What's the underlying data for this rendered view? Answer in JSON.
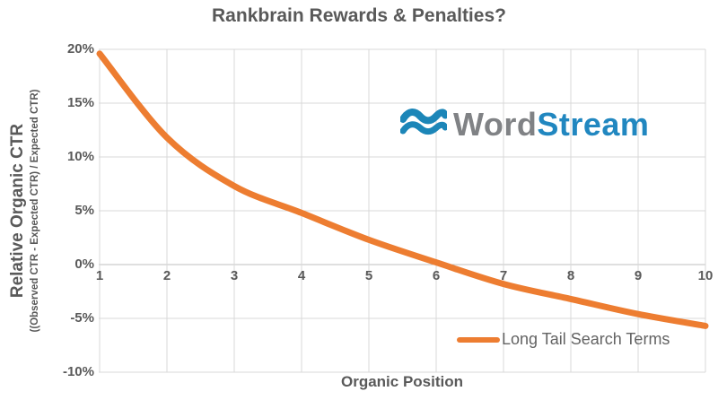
{
  "chart_data": {
    "type": "line",
    "title": "Rankbrain Rewards & Penalties?",
    "xlabel": "Organic Position",
    "ylabel": "Relative Organic CTR",
    "ylabel_sub": "((Observed CTR - Expected CTR) / Expected CTR)",
    "x": [
      1,
      2,
      3,
      4,
      5,
      6,
      7,
      8,
      9,
      10
    ],
    "xtick_labels": [
      "1",
      "2",
      "3",
      "4",
      "5",
      "6",
      "7",
      "8",
      "9",
      "10"
    ],
    "ytick_labels": [
      "20%",
      "15%",
      "10%",
      "5%",
      "0%",
      "-5%",
      "-10%"
    ],
    "ytick_values": [
      20,
      15,
      10,
      5,
      0,
      -5,
      -10
    ],
    "xlim": [
      1,
      10
    ],
    "ylim": [
      -10,
      20
    ],
    "grid": true,
    "legend_position": "inside-bottom-right",
    "series": [
      {
        "name": "Long Tail Search Terms",
        "color": "#ED7D31",
        "values": [
          19.6,
          11.8,
          7.3,
          4.8,
          2.3,
          0.2,
          -1.8,
          -3.2,
          -4.6,
          -5.7
        ]
      }
    ]
  },
  "watermark": {
    "icon": "wordstream-waves-icon",
    "word": "Word",
    "stream": "Stream"
  },
  "colors": {
    "series_orange": "#ED7D31",
    "text_gray": "#595959",
    "legend_text_gray": "#636363",
    "gridline": "#D9D9D9",
    "axis_line": "#BFBFBF",
    "logo_text_gray": "#808285",
    "logo_blue": "#2187C0",
    "logo_wave_blue": "#1C86B8",
    "background": "#FFFFFF"
  }
}
